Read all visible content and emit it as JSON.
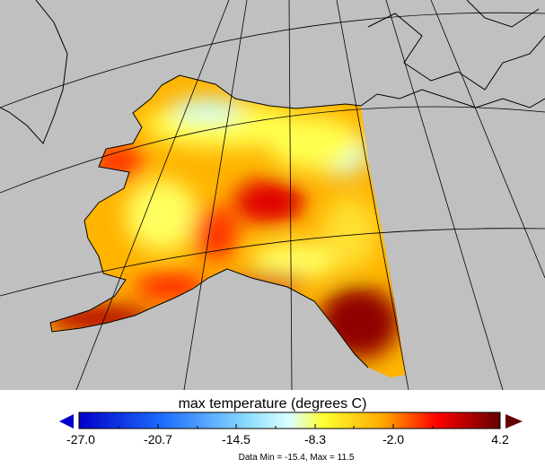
{
  "map": {
    "background_color": "#c0c0c0",
    "coastline_color": "#000000",
    "region": "Alaska"
  },
  "colorbar": {
    "title": "max temperature (degrees C)",
    "ticks": [
      "-27.0",
      "-20.7",
      "-14.5",
      "-8.3",
      "-2.0",
      "4.2"
    ],
    "range": [
      -27.0,
      4.2
    ],
    "extend": "both",
    "colors": [
      "#0000c8",
      "#1e6eff",
      "#8cdcff",
      "#dcffff",
      "#ffff32",
      "#ffaa00",
      "#ff0000",
      "#640000"
    ],
    "data_range_text": "Data Min = -15.4, Max = 11.5"
  }
}
